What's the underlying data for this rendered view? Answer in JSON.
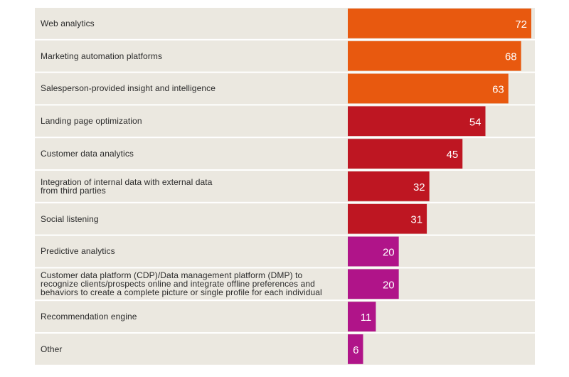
{
  "chart_data": {
    "type": "bar",
    "orientation": "horizontal",
    "title": "",
    "xlabel": "",
    "ylabel": "",
    "xlim": [
      0,
      80
    ],
    "grid": false,
    "legend": "none",
    "categories": [
      "Web analytics",
      "Marketing automation platforms",
      "Salesperson-provided insight and intelligence",
      "Landing page optimization",
      "Customer data analytics",
      "Integration of internal data with external data\nfrom third parties",
      "Social listening",
      "Predictive analytics",
      "Customer data platform (CDP)/Data management platform (DMP) to\nrecognize clients/prospects online and integrate offline preferences and\nbehaviors to create a complete picture or single profile for each individual",
      "Recommendation engine",
      "Other"
    ],
    "values": [
      72,
      68,
      63,
      54,
      45,
      32,
      31,
      20,
      20,
      11,
      6
    ],
    "colors": {
      "background": "#ebe8e0",
      "separator": "#ffffff",
      "tier_orange": "#e8590f",
      "tier_red": "#be1622",
      "tier_magenta": "#b01489",
      "value_text": "#ffffff"
    },
    "bar_color_tiers": [
      "tier_orange",
      "tier_orange",
      "tier_orange",
      "tier_red",
      "tier_red",
      "tier_red",
      "tier_red",
      "tier_magenta",
      "tier_magenta",
      "tier_magenta",
      "tier_magenta"
    ]
  }
}
